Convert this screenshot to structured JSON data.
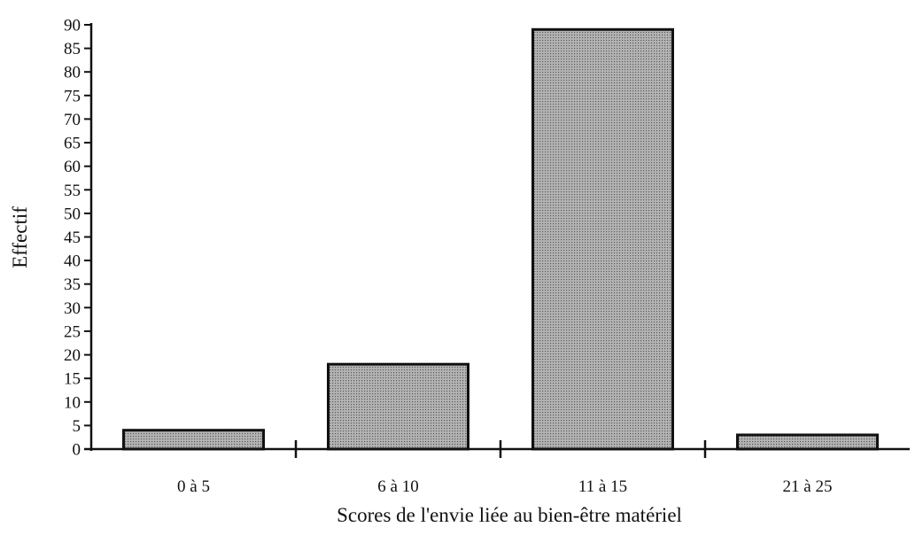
{
  "chart_data": {
    "type": "bar",
    "title": "",
    "xlabel": "Scores de l'envie liée au bien-être matériel",
    "ylabel": "Effectif",
    "categories": [
      "0 à 5",
      "6 à 10",
      "11 à 15",
      "21 à 25"
    ],
    "values": [
      4,
      18,
      89,
      3
    ],
    "ylim": [
      0,
      90
    ],
    "yticks": [
      "0",
      "5",
      "10",
      "15",
      "20",
      "25",
      "30",
      "35",
      "40",
      "45",
      "50",
      "55",
      "60",
      "65",
      "70",
      "75",
      "80",
      "85",
      "90"
    ],
    "grid": false,
    "legend": "none",
    "colors": {
      "bar_fill": "#b4b4b4",
      "bar_dot": "#5a5a5a",
      "bar_stroke": "#111111",
      "axis": "#111111"
    }
  }
}
